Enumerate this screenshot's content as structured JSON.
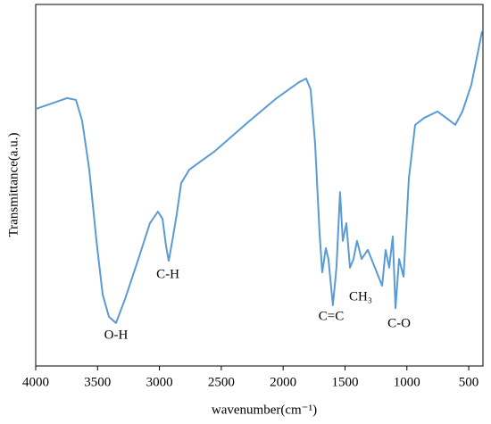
{
  "chart_data": {
    "type": "line",
    "xlabel": "wavenumber(cm⁻¹)",
    "ylabel": "Transmittance(a.u.)",
    "xlim": [
      4000,
      385
    ],
    "xticks": [
      4000,
      3500,
      3000,
      2500,
      2000,
      1500,
      1000,
      500
    ],
    "ylim": [
      0,
      100
    ],
    "x_reversed": true,
    "series": [
      {
        "color": "#5b9bd5",
        "x": [
          4000,
          3856,
          3747,
          3675,
          3625,
          3567,
          3509,
          3459,
          3408,
          3351,
          3278,
          3170,
          3077,
          3012,
          2975,
          2947,
          2925,
          2896,
          2860,
          2824,
          2759,
          2557,
          2268,
          2052,
          1872,
          1814,
          1778,
          1742,
          1706,
          1684,
          1655,
          1634,
          1598,
          1569,
          1540,
          1518,
          1489,
          1460,
          1431,
          1403,
          1366,
          1316,
          1258,
          1200,
          1172,
          1143,
          1114,
          1092,
          1063,
          1027,
          984,
          933,
          861,
          753,
          681,
          609,
          551,
          479,
          428,
          392
        ],
        "values": [
          71.1,
          72.8,
          74.1,
          73.6,
          67.9,
          54.3,
          34.6,
          19.8,
          13.6,
          11.9,
          18.5,
          29.6,
          39.5,
          42.7,
          40.7,
          33.3,
          29.1,
          34.6,
          42.0,
          50.6,
          54.3,
          59.3,
          67.9,
          74.1,
          78.5,
          79.5,
          76.5,
          61.7,
          37.0,
          25.9,
          32.6,
          29.6,
          16.8,
          27.2,
          48.1,
          34.6,
          39.5,
          27.2,
          29.6,
          34.6,
          29.6,
          32.1,
          27.2,
          22.2,
          32.1,
          27.2,
          35.8,
          16.0,
          29.6,
          24.7,
          51.9,
          66.7,
          68.6,
          70.4,
          68.6,
          66.7,
          70.4,
          77.8,
          86.4,
          92.6
        ]
      }
    ],
    "annotations": [
      "O-H",
      "C-H",
      "C=C",
      "CH₃",
      "C-O"
    ]
  }
}
